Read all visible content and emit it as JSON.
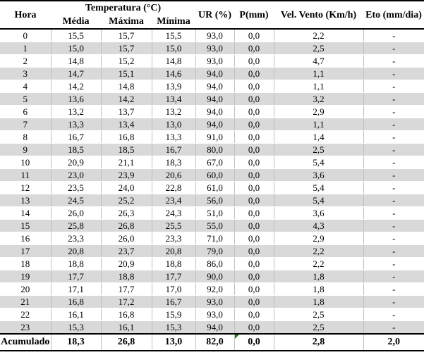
{
  "table": {
    "headers": {
      "hora": "Hora",
      "temperatura_group": "Temperatura (°C)",
      "media": "Média",
      "maxima": "Máxima",
      "minima": "Mínima",
      "ur": "UR (%)",
      "p": "P(mm)",
      "vento": "Vel. Vento (Km/h)",
      "eto": "Eto (mm/dia)"
    },
    "rows": [
      {
        "hora": "0",
        "media": "15,5",
        "maxima": "15,7",
        "minima": "15,5",
        "ur": "93,0",
        "p": "0,0",
        "vento": "2,2",
        "eto": "-"
      },
      {
        "hora": "1",
        "media": "15,0",
        "maxima": "15,7",
        "minima": "15,0",
        "ur": "93,0",
        "p": "0,0",
        "vento": "2,5",
        "eto": "-"
      },
      {
        "hora": "2",
        "media": "14,8",
        "maxima": "15,2",
        "minima": "14,8",
        "ur": "93,0",
        "p": "0,0",
        "vento": "4,7",
        "eto": "-"
      },
      {
        "hora": "3",
        "media": "14,7",
        "maxima": "15,1",
        "minima": "14,6",
        "ur": "94,0",
        "p": "0,0",
        "vento": "1,1",
        "eto": "-"
      },
      {
        "hora": "4",
        "media": "14,2",
        "maxima": "14,8",
        "minima": "13,9",
        "ur": "94,0",
        "p": "0,0",
        "vento": "1,1",
        "eto": "-"
      },
      {
        "hora": "5",
        "media": "13,6",
        "maxima": "14,2",
        "minima": "13,4",
        "ur": "94,0",
        "p": "0,0",
        "vento": "3,2",
        "eto": "-"
      },
      {
        "hora": "6",
        "media": "13,2",
        "maxima": "13,7",
        "minima": "13,2",
        "ur": "94,0",
        "p": "0,0",
        "vento": "2,9",
        "eto": "-"
      },
      {
        "hora": "7",
        "media": "13,3",
        "maxima": "13,4",
        "minima": "13,0",
        "ur": "94,0",
        "p": "0,0",
        "vento": "1,1",
        "eto": "-"
      },
      {
        "hora": "8",
        "media": "16,7",
        "maxima": "16,8",
        "minima": "13,3",
        "ur": "91,0",
        "p": "0,0",
        "vento": "1,4",
        "eto": "-"
      },
      {
        "hora": "9",
        "media": "18,5",
        "maxima": "18,5",
        "minima": "16,7",
        "ur": "80,0",
        "p": "0,0",
        "vento": "2,5",
        "eto": "-"
      },
      {
        "hora": "10",
        "media": "20,9",
        "maxima": "21,1",
        "minima": "18,3",
        "ur": "67,0",
        "p": "0,0",
        "vento": "5,4",
        "eto": "-"
      },
      {
        "hora": "11",
        "media": "23,0",
        "maxima": "23,9",
        "minima": "20,6",
        "ur": "60,0",
        "p": "0,0",
        "vento": "3,6",
        "eto": "-"
      },
      {
        "hora": "12",
        "media": "23,5",
        "maxima": "24,0",
        "minima": "22,8",
        "ur": "61,0",
        "p": "0,0",
        "vento": "5,4",
        "eto": "-"
      },
      {
        "hora": "13",
        "media": "24,5",
        "maxima": "25,2",
        "minima": "23,4",
        "ur": "56,0",
        "p": "0,0",
        "vento": "5,4",
        "eto": "-"
      },
      {
        "hora": "14",
        "media": "26,0",
        "maxima": "26,3",
        "minima": "24,3",
        "ur": "51,0",
        "p": "0,0",
        "vento": "3,6",
        "eto": "-"
      },
      {
        "hora": "15",
        "media": "25,8",
        "maxima": "26,8",
        "minima": "25,5",
        "ur": "55,0",
        "p": "0,0",
        "vento": "4,3",
        "eto": "-"
      },
      {
        "hora": "16",
        "media": "23,3",
        "maxima": "26,0",
        "minima": "23,3",
        "ur": "71,0",
        "p": "0,0",
        "vento": "2,9",
        "eto": "-"
      },
      {
        "hora": "17",
        "media": "20,8",
        "maxima": "23,7",
        "minima": "20,8",
        "ur": "79,0",
        "p": "0,0",
        "vento": "2,2",
        "eto": "-"
      },
      {
        "hora": "18",
        "media": "18,8",
        "maxima": "20,9",
        "minima": "18,8",
        "ur": "86,0",
        "p": "0,0",
        "vento": "2,2",
        "eto": "-"
      },
      {
        "hora": "19",
        "media": "17,7",
        "maxima": "18,8",
        "minima": "17,7",
        "ur": "90,0",
        "p": "0,0",
        "vento": "1,8",
        "eto": "-"
      },
      {
        "hora": "20",
        "media": "17,1",
        "maxima": "17,7",
        "minima": "17,0",
        "ur": "92,0",
        "p": "0,0",
        "vento": "1,8",
        "eto": "-"
      },
      {
        "hora": "21",
        "media": "16,8",
        "maxima": "17,2",
        "minima": "16,7",
        "ur": "93,0",
        "p": "0,0",
        "vento": "1,8",
        "eto": "-"
      },
      {
        "hora": "22",
        "media": "16,1",
        "maxima": "16,8",
        "minima": "15,9",
        "ur": "93,0",
        "p": "0,0",
        "vento": "2,5",
        "eto": "-"
      },
      {
        "hora": "23",
        "media": "15,3",
        "maxima": "16,1",
        "minima": "15,3",
        "ur": "94,0",
        "p": "0,0",
        "vento": "2,5",
        "eto": "-"
      }
    ],
    "footer": {
      "label": "Acumulado",
      "media": "18,3",
      "maxima": "26,8",
      "minima": "13,0",
      "ur": "82,0",
      "p": "0,0",
      "vento": "2,8",
      "eto": "2,0"
    }
  },
  "colors": {
    "row_band": "#d9d9d9",
    "grid_line": "#bfbfbf",
    "rule_line": "#000000",
    "error_triangle_green": "#1e7b1e"
  },
  "chart_data": {
    "type": "table",
    "title": "",
    "columns": [
      "Hora",
      "Temperatura (°C) Média",
      "Temperatura (°C) Máxima",
      "Temperatura (°C) Mínima",
      "UR (%)",
      "P(mm)",
      "Vel. Vento (Km/h)",
      "Eto (mm/dia)"
    ],
    "rows": [
      [
        "0",
        "15,5",
        "15,7",
        "15,5",
        "93,0",
        "0,0",
        "2,2",
        "-"
      ],
      [
        "1",
        "15,0",
        "15,7",
        "15,0",
        "93,0",
        "0,0",
        "2,5",
        "-"
      ],
      [
        "2",
        "14,8",
        "15,2",
        "14,8",
        "93,0",
        "0,0",
        "4,7",
        "-"
      ],
      [
        "3",
        "14,7",
        "15,1",
        "14,6",
        "94,0",
        "0,0",
        "1,1",
        "-"
      ],
      [
        "4",
        "14,2",
        "14,8",
        "13,9",
        "94,0",
        "0,0",
        "1,1",
        "-"
      ],
      [
        "5",
        "13,6",
        "14,2",
        "13,4",
        "94,0",
        "0,0",
        "3,2",
        "-"
      ],
      [
        "6",
        "13,2",
        "13,7",
        "13,2",
        "94,0",
        "0,0",
        "2,9",
        "-"
      ],
      [
        "7",
        "13,3",
        "13,4",
        "13,0",
        "94,0",
        "0,0",
        "1,1",
        "-"
      ],
      [
        "8",
        "16,7",
        "16,8",
        "13,3",
        "91,0",
        "0,0",
        "1,4",
        "-"
      ],
      [
        "9",
        "18,5",
        "18,5",
        "16,7",
        "80,0",
        "0,0",
        "2,5",
        "-"
      ],
      [
        "10",
        "20,9",
        "21,1",
        "18,3",
        "67,0",
        "0,0",
        "5,4",
        "-"
      ],
      [
        "11",
        "23,0",
        "23,9",
        "20,6",
        "60,0",
        "0,0",
        "3,6",
        "-"
      ],
      [
        "12",
        "23,5",
        "24,0",
        "22,8",
        "61,0",
        "0,0",
        "5,4",
        "-"
      ],
      [
        "13",
        "24,5",
        "25,2",
        "23,4",
        "56,0",
        "0,0",
        "5,4",
        "-"
      ],
      [
        "14",
        "26,0",
        "26,3",
        "24,3",
        "51,0",
        "0,0",
        "3,6",
        "-"
      ],
      [
        "15",
        "25,8",
        "26,8",
        "25,5",
        "55,0",
        "0,0",
        "4,3",
        "-"
      ],
      [
        "16",
        "23,3",
        "26,0",
        "23,3",
        "71,0",
        "0,0",
        "2,9",
        "-"
      ],
      [
        "17",
        "20,8",
        "23,7",
        "20,8",
        "79,0",
        "0,0",
        "2,2",
        "-"
      ],
      [
        "18",
        "18,8",
        "20,9",
        "18,8",
        "86,0",
        "0,0",
        "2,2",
        "-"
      ],
      [
        "19",
        "17,7",
        "18,8",
        "17,7",
        "90,0",
        "0,0",
        "1,8",
        "-"
      ],
      [
        "20",
        "17,1",
        "17,7",
        "17,0",
        "92,0",
        "0,0",
        "1,8",
        "-"
      ],
      [
        "21",
        "16,8",
        "17,2",
        "16,7",
        "93,0",
        "0,0",
        "1,8",
        "-"
      ],
      [
        "22",
        "16,1",
        "16,8",
        "15,9",
        "93,0",
        "0,0",
        "2,5",
        "-"
      ],
      [
        "23",
        "15,3",
        "16,1",
        "15,3",
        "94,0",
        "0,0",
        "2,5",
        "-"
      ],
      [
        "Acumulado",
        "18,3",
        "26,8",
        "13,0",
        "82,0",
        "0,0",
        "2,8",
        "2,0"
      ]
    ]
  }
}
